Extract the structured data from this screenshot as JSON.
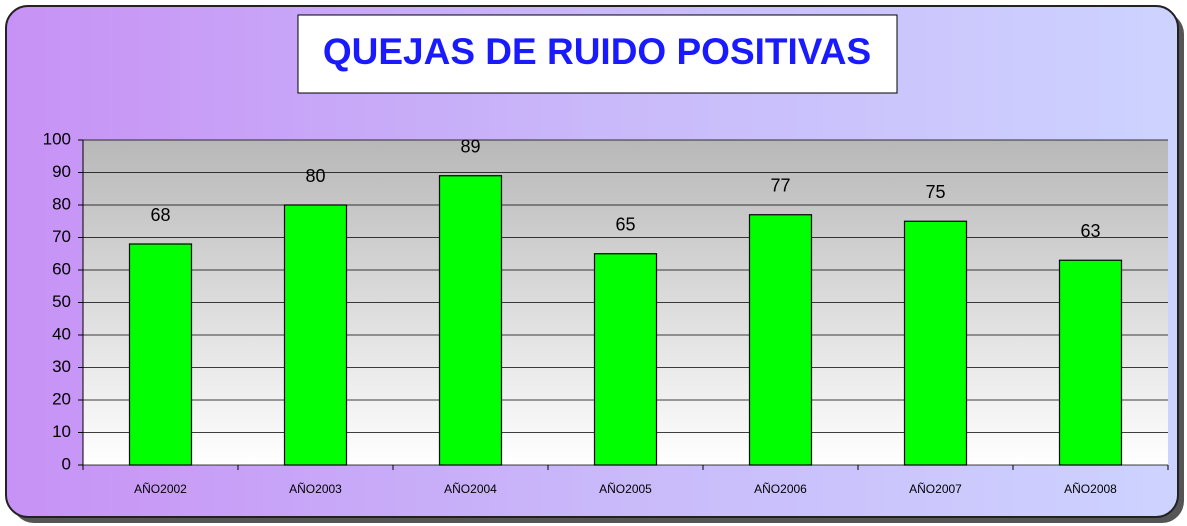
{
  "chart_data": {
    "type": "bar",
    "title": "QUEJAS DE RUIDO POSITIVAS",
    "categories": [
      "AÑO2002",
      "AÑO2003",
      "AÑO2004",
      "AÑO2005",
      "AÑO2006",
      "AÑO2007",
      "AÑO2008"
    ],
    "values": [
      68,
      80,
      89,
      65,
      77,
      75,
      63
    ],
    "color": "#00ff00",
    "ylim": [
      0,
      100
    ],
    "yticks": [
      0,
      10,
      20,
      30,
      40,
      50,
      60,
      70,
      80,
      90,
      100
    ],
    "grid": true
  }
}
